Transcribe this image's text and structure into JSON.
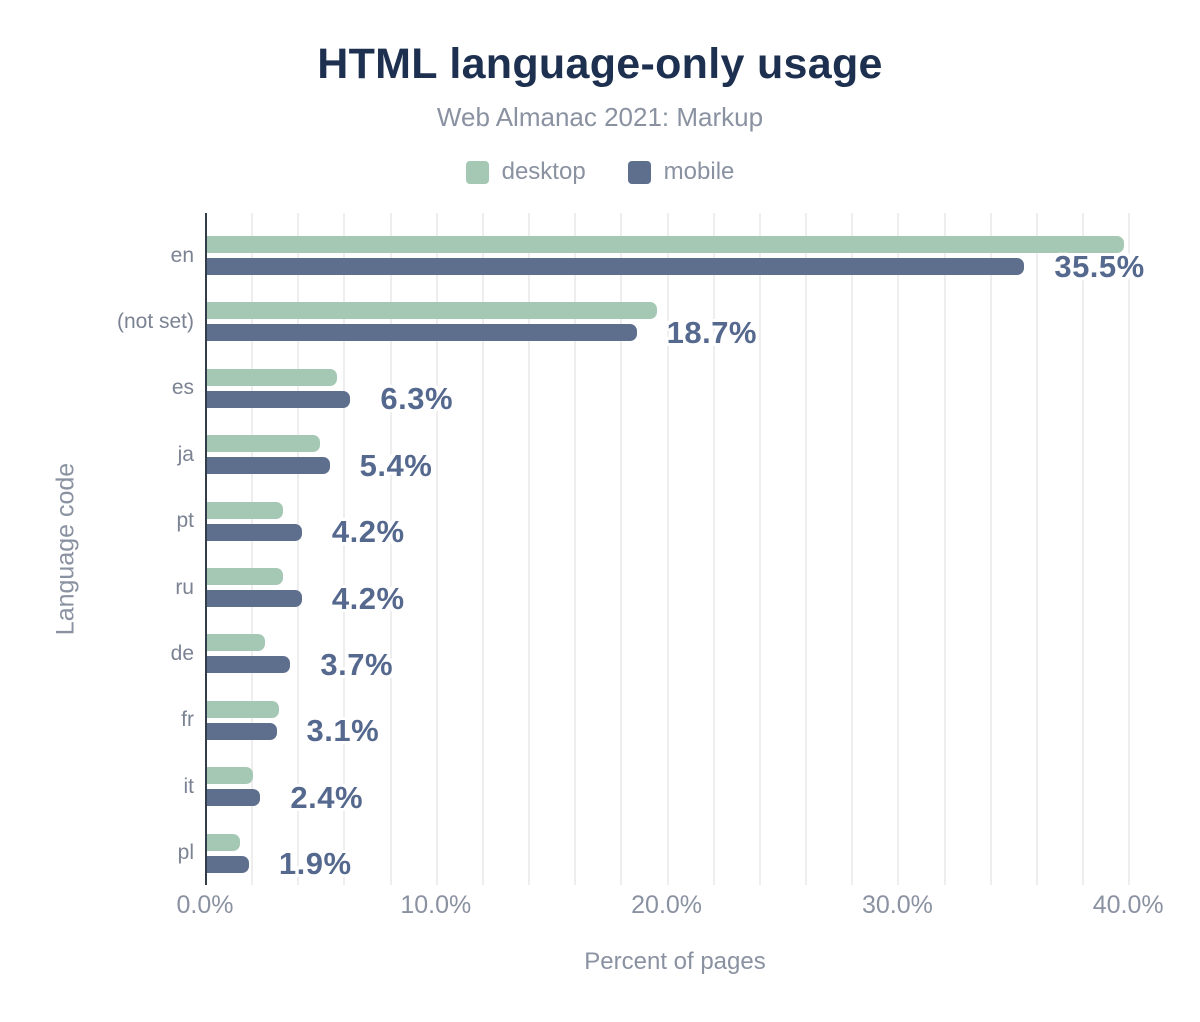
{
  "page": {
    "title": "HTML language-only usage",
    "subtitle": "Web Almanac 2021: Markup"
  },
  "legend": {
    "items": [
      {
        "label": "desktop",
        "color": "#a5c8b5"
      },
      {
        "label": "mobile",
        "color": "#5e6f8e"
      }
    ]
  },
  "colors": {
    "title_text": "#1e3050",
    "muted_text": "#8a92a2",
    "row_label_text": "#7b8393",
    "value_label_text": "#55688d",
    "axis_line": "#333c49",
    "gridline": "#eeeeee",
    "background": "#ffffff"
  },
  "chart_data": {
    "type": "bar",
    "orientation": "horizontal",
    "title": "HTML language-only usage",
    "subtitle": "Web Almanac 2021: Markup",
    "categories": [
      "en",
      "(not set)",
      "es",
      "ja",
      "pt",
      "ru",
      "de",
      "fr",
      "it",
      "pl"
    ],
    "series": [
      {
        "name": "desktop",
        "color": "#a5c8b5",
        "values": [
          39.8,
          19.6,
          5.7,
          5.0,
          3.4,
          3.4,
          2.6,
          3.2,
          2.1,
          1.5
        ]
      },
      {
        "name": "mobile",
        "color": "#5e6f8e",
        "values": [
          35.5,
          18.7,
          6.3,
          5.4,
          4.2,
          4.2,
          3.7,
          3.1,
          2.4,
          1.9
        ]
      }
    ],
    "value_labels": [
      "35.5%",
      "18.7%",
      "6.3%",
      "5.4%",
      "4.2%",
      "4.2%",
      "3.7%",
      "3.1%",
      "2.4%",
      "1.9%"
    ],
    "value_label_series": "mobile",
    "xlabel": "Percent of pages",
    "ylabel": "Language code",
    "xlim": [
      0,
      40.7
    ],
    "x_tick_values": [
      0,
      10,
      20,
      30,
      40
    ],
    "x_tick_labels": [
      "0.0%",
      "10.0%",
      "20.0%",
      "30.0%",
      "40.0%"
    ],
    "gridline_step": 2,
    "grid": true,
    "legend_position": "top"
  }
}
